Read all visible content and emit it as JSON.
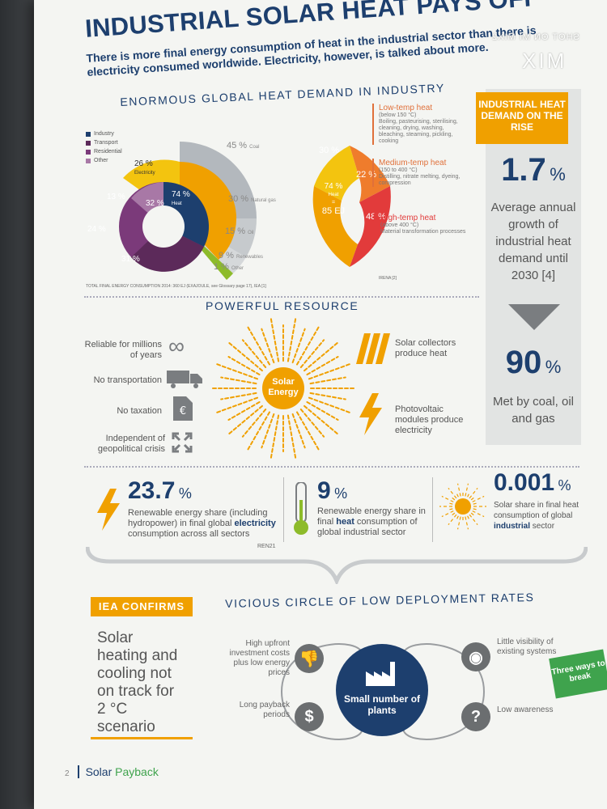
{
  "title": "INDUSTRIAL SOLAR HEAT PAYS OFF",
  "subtitle": "There is more final energy consumption of heat in the industrial sector than there is electricity consumed worldwide. Electricity, however, is talked about more.",
  "heat_demand": {
    "heading": "ENORMOUS GLOBAL HEAT DEMAND IN INDUSTRY",
    "legend": [
      "Industry",
      "Transport",
      "Residential",
      "Other"
    ],
    "legend_colors": [
      "#1d3f6e",
      "#5c2a5a",
      "#7b3a7a",
      "#a878a6"
    ],
    "inner_ring": [
      {
        "label": "32 %",
        "color": "#1d3f6e"
      },
      {
        "label": "31 %",
        "color": "#5c2a5a"
      },
      {
        "label": "24 %",
        "color": "#7b3a7a"
      },
      {
        "label": "13 %",
        "color": "#a878a6"
      }
    ],
    "electricity": {
      "value": "26 %",
      "label": "Electricity"
    },
    "heat": {
      "value": "74 %",
      "label": "Heat"
    },
    "outer": [
      {
        "value": "45 %",
        "label": "Coal"
      },
      {
        "value": "30 %",
        "label": "Natural gas"
      },
      {
        "value": "15 %",
        "label": "Oil"
      },
      {
        "value": "9 %",
        "label": "Renewables"
      },
      {
        "value": "1 %",
        "label": "Other"
      }
    ],
    "fan": {
      "center_top": "74 %",
      "center_mid": "Heat",
      "center_eq": "=",
      "center_bottom": "85 EJ",
      "parts": [
        "30 %",
        "22 %",
        "48 %"
      ]
    },
    "temps": [
      {
        "title": "Low-temp heat",
        "range": "(below 150 °C)",
        "desc": "Boiling, pasteurising, sterilising, cleaning, drying, washing, bleaching, steaming, pickling, cooking"
      },
      {
        "title": "Medium-temp heat",
        "range": "(150 to 400 °C)",
        "desc": "Distilling, nitrate melting, dyeing, compression"
      },
      {
        "title": "High-temp heat",
        "range": "(above 400 °C)",
        "desc": "Material transformation processes"
      }
    ],
    "source_left": "TOTAL FINAL ENERGY CONSUMPTION 2014: 360 EJ (EXAJOULE, see Glossary page 17), IEA [1]",
    "source_right": "IRENA [2]"
  },
  "side": {
    "head": "INDUSTRIAL HEAT DEMAND ON THE RISE",
    "value1": "1.7",
    "unit1": "%",
    "text1": "Average annual growth of industrial heat demand until 2030 [4]",
    "value2": "90",
    "unit2": "%",
    "text2": "Met by coal, oil and gas"
  },
  "resource": {
    "heading": "POWERFUL RESOURCE",
    "sun_label_1": "Solar",
    "sun_label_2": "Energy",
    "left": [
      {
        "text": "Reliable for millions of years",
        "icon": "infinity-icon"
      },
      {
        "text": "No transportation",
        "icon": "truck-icon"
      },
      {
        "text": "No taxation",
        "icon": "euro-document-icon"
      },
      {
        "text": "Independent of geopolitical crisis",
        "icon": "arrows-out-icon"
      }
    ],
    "right": [
      {
        "text": "Solar collectors produce heat",
        "icon": "solar-collector-icon"
      },
      {
        "text": "Photovoltaic modules produce electricity",
        "icon": "lightning-icon"
      }
    ]
  },
  "stats": [
    {
      "value": "23.7",
      "unit": "%",
      "desc_a": "Renewable energy share (including hydropower) in final global ",
      "desc_b": "electricity",
      "desc_c": " consumption across all sectors",
      "source": "REN21"
    },
    {
      "value": "9",
      "unit": "%",
      "desc_a": "Renewable energy share in final ",
      "desc_b": "heat",
      "desc_c": " consumption of global industrial sector"
    },
    {
      "value": "0.001",
      "unit": "%",
      "desc_a": "Solar share in final heat consumption of global ",
      "desc_b": "industrial",
      "desc_c": " sector"
    }
  ],
  "iea": {
    "head": "IEA CONFIRMS",
    "body": "Solar heating and cooling not on track for 2 °C scenario"
  },
  "vicious": {
    "heading": "VICIOUS CIRCLE OF LOW DEPLOYMENT RATES",
    "center": "Small number of plants",
    "items": [
      {
        "text": "High upfront investment costs plus low energy prices",
        "icon": "thumbs-down-icon"
      },
      {
        "text": "Long payback periods",
        "icon": "dollar-icon"
      },
      {
        "text": "Little visibility of existing systems",
        "icon": "eye-icon"
      },
      {
        "text": "Low awareness",
        "icon": "question-icon"
      }
    ],
    "tag": "Three ways to break"
  },
  "footer": {
    "page": "2",
    "brand_a": "Solar",
    "brand_b": "Payback"
  },
  "watermark": {
    "line1": "SHOT ON MI MIX2",
    "line2": "MIX"
  },
  "colors": {
    "navy": "#1d3f6e",
    "orange": "#f0a000",
    "green": "#3fa34d"
  }
}
